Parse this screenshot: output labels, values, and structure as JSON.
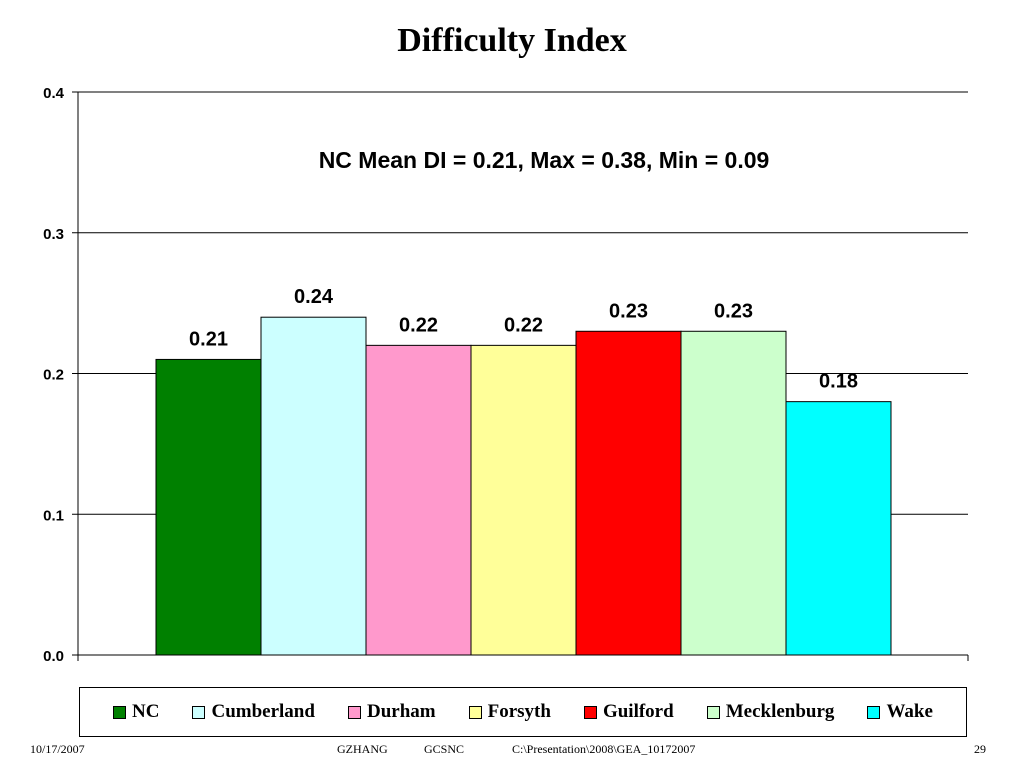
{
  "slide": {
    "title": "Difficulty Index"
  },
  "chart_data": {
    "type": "bar",
    "title": "Difficulty Index",
    "annotation": "NC Mean DI = 0.21, Max = 0.38, Min = 0.09",
    "categories": [
      "NC",
      "Cumberland",
      "Durham",
      "Forsyth",
      "Guilford",
      "Mecklenburg",
      "Wake"
    ],
    "values": [
      0.21,
      0.24,
      0.22,
      0.22,
      0.23,
      0.23,
      0.18
    ],
    "data_labels": [
      "0.21",
      "0.24",
      "0.22",
      "0.22",
      "0.23",
      "0.23",
      "0.18"
    ],
    "colors": [
      "#008000",
      "#CCFFFF",
      "#FF99CC",
      "#FFFF99",
      "#FF0000",
      "#CCFFCC",
      "#00FFFF"
    ],
    "ylim": [
      0,
      0.4
    ],
    "yticks": [
      "0.0",
      "0.1",
      "0.2",
      "0.3",
      "0.4"
    ],
    "ytick_values": [
      0,
      0.1,
      0.2,
      0.3,
      0.4
    ],
    "xlabel": "",
    "ylabel": "",
    "grid": true,
    "legend": "bottom"
  },
  "footer": {
    "date": "10/17/2007",
    "author": "GZHANG",
    "org": "GCSNC",
    "path": "C:\\Presentation\\2008\\GEA_10172007",
    "page": "29"
  }
}
